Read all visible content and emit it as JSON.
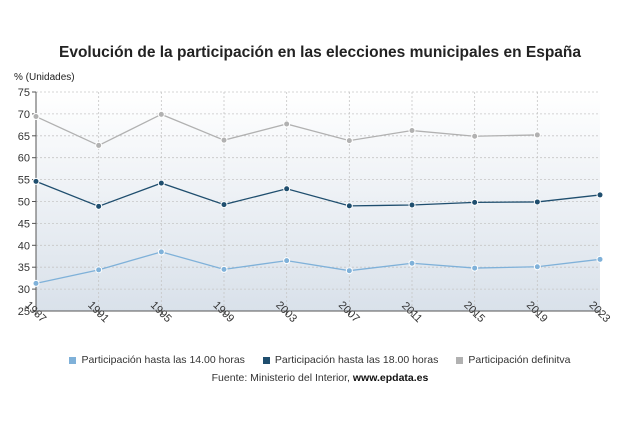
{
  "title": "Evolución de la participación en las elecciones municipales en España",
  "ylabel": "% (Unidades)",
  "source": {
    "prefix": "Fuente: Ministerio del Interior, ",
    "site": "www.epdata.es"
  },
  "colors": {
    "series_14h": "#7fb1d9",
    "series_18h": "#1f4e6e",
    "series_def": "#b1b1b1",
    "grid": "#c6c6c6",
    "axis": "#555555",
    "bg_top": "#ffffff",
    "bg_bottom": "#d9e1ea"
  },
  "chart_data": {
    "type": "line",
    "title": "Evolución de la participación en las elecciones municipales en España",
    "xlabel": "",
    "ylabel": "% (Unidades)",
    "categories": [
      "1987",
      "1991",
      "1995",
      "1999",
      "2003",
      "2007",
      "2011",
      "2015",
      "2019",
      "2023"
    ],
    "ylim": [
      25,
      75
    ],
    "yticks": [
      25,
      30,
      35,
      40,
      45,
      50,
      55,
      60,
      65,
      70,
      75
    ],
    "grid": true,
    "legend_position": "bottom",
    "series": [
      {
        "name": "Participación hasta las 14.00 horas",
        "color": "#7fb1d9",
        "values": [
          31.3,
          34.4,
          38.5,
          34.5,
          36.5,
          34.2,
          35.9,
          34.8,
          35.1,
          36.8
        ]
      },
      {
        "name": "Participación hasta las 18.00 horas",
        "color": "#1f4e6e",
        "values": [
          54.6,
          48.9,
          54.2,
          49.3,
          52.9,
          49.0,
          49.2,
          49.8,
          49.9,
          51.5
        ]
      },
      {
        "name": "Participación definitva",
        "color": "#b1b1b1",
        "values": [
          69.4,
          62.8,
          69.9,
          64.0,
          67.7,
          63.9,
          66.2,
          64.9,
          65.2,
          null
        ]
      }
    ]
  }
}
